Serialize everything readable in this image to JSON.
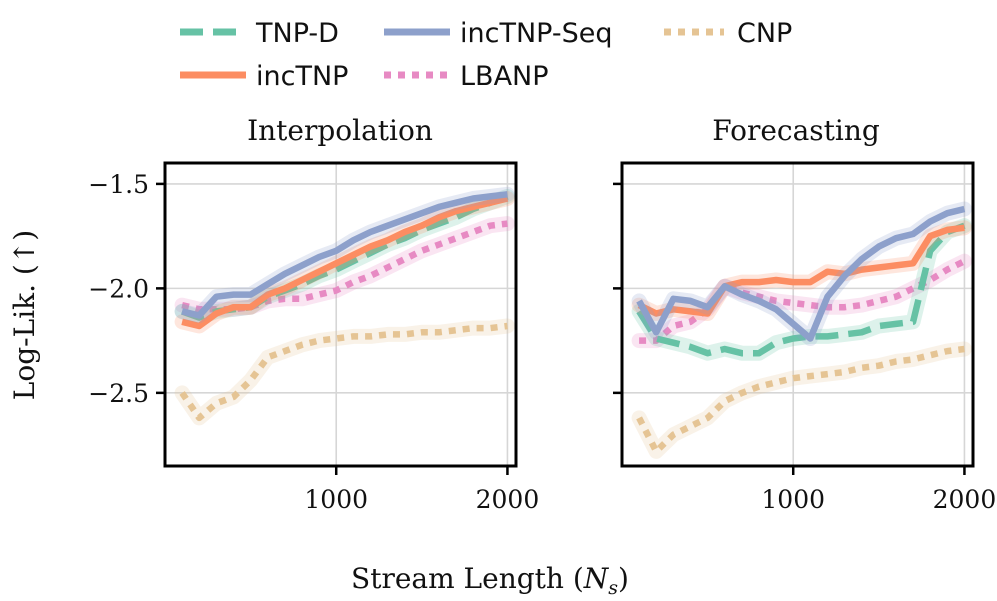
{
  "chart_data": {
    "type": "line",
    "xlabel_prefix": "Stream Length (",
    "xlabel_var": "N",
    "xlabel_sub": "s",
    "xlabel_suffix": ")",
    "ylabel": "Log-Lik. (↑)",
    "xlim": [
      0,
      2050
    ],
    "ylim": [
      -2.85,
      -1.4
    ],
    "xticks": [
      1000,
      2000
    ],
    "xtick_labels": [
      "1000",
      "2000"
    ],
    "yticks": [
      -1.5,
      -2.0,
      -2.5
    ],
    "ytick_labels": [
      "−1.5",
      "−2.0",
      "−2.5"
    ],
    "grid": true,
    "legend": {
      "placement": "top",
      "entries": [
        {
          "name": "TNP-D",
          "color": "#66c2a5",
          "style": "dashed"
        },
        {
          "name": "incTNP-Seq",
          "color": "#8da0cb",
          "style": "solid"
        },
        {
          "name": "CNP",
          "color": "#e5c494",
          "style": "dotted"
        },
        {
          "name": "incTNP",
          "color": "#fc8d62",
          "style": "solid"
        },
        {
          "name": "LBANP",
          "color": "#e78ac3",
          "style": "dotted"
        }
      ]
    },
    "panels": [
      {
        "title": "Interpolation",
        "show_yticklabels": true,
        "x": [
          100,
          200,
          300,
          400,
          500,
          600,
          700,
          800,
          900,
          1000,
          1100,
          1200,
          1300,
          1400,
          1500,
          1600,
          1700,
          1800,
          1900,
          2000
        ],
        "series": [
          {
            "name": "CNP",
            "values": [
              -2.5,
              -2.62,
              -2.55,
              -2.52,
              -2.44,
              -2.33,
              -2.3,
              -2.27,
              -2.25,
              -2.24,
              -2.23,
              -2.23,
              -2.22,
              -2.22,
              -2.21,
              -2.21,
              -2.2,
              -2.19,
              -2.19,
              -2.18
            ]
          },
          {
            "name": "LBANP",
            "values": [
              -2.08,
              -2.1,
              -2.1,
              -2.1,
              -2.09,
              -2.06,
              -2.05,
              -2.05,
              -2.03,
              -2.01,
              -1.97,
              -1.94,
              -1.9,
              -1.86,
              -1.82,
              -1.79,
              -1.76,
              -1.73,
              -1.7,
              -1.69
            ]
          },
          {
            "name": "TNP-D",
            "values": [
              -2.11,
              -2.14,
              -2.11,
              -2.1,
              -2.09,
              -2.04,
              -2.01,
              -1.98,
              -1.94,
              -1.91,
              -1.87,
              -1.83,
              -1.79,
              -1.76,
              -1.72,
              -1.69,
              -1.66,
              -1.62,
              -1.59,
              -1.56
            ]
          },
          {
            "name": "incTNP",
            "values": [
              -2.16,
              -2.18,
              -2.12,
              -2.09,
              -2.09,
              -2.03,
              -2.0,
              -1.96,
              -1.92,
              -1.88,
              -1.84,
              -1.8,
              -1.77,
              -1.73,
              -1.7,
              -1.66,
              -1.63,
              -1.61,
              -1.59,
              -1.57
            ]
          },
          {
            "name": "incTNP-Seq",
            "values": [
              -2.11,
              -2.13,
              -2.04,
              -2.03,
              -2.03,
              -1.98,
              -1.93,
              -1.89,
              -1.85,
              -1.82,
              -1.77,
              -1.73,
              -1.7,
              -1.67,
              -1.64,
              -1.61,
              -1.59,
              -1.57,
              -1.56,
              -1.55
            ]
          }
        ]
      },
      {
        "title": "Forecasting",
        "show_yticklabels": false,
        "x": [
          100,
          200,
          300,
          400,
          500,
          600,
          700,
          800,
          900,
          1000,
          1100,
          1200,
          1300,
          1400,
          1500,
          1600,
          1700,
          1800,
          1900,
          2000
        ],
        "series": [
          {
            "name": "CNP",
            "values": [
              -2.62,
              -2.78,
              -2.7,
              -2.66,
              -2.62,
              -2.54,
              -2.5,
              -2.47,
              -2.45,
              -2.43,
              -2.42,
              -2.41,
              -2.4,
              -2.38,
              -2.37,
              -2.35,
              -2.34,
              -2.32,
              -2.3,
              -2.29
            ]
          },
          {
            "name": "LBANP",
            "values": [
              -2.25,
              -2.25,
              -2.18,
              -2.16,
              -2.1,
              -1.99,
              -2.02,
              -2.04,
              -2.06,
              -2.07,
              -2.08,
              -2.09,
              -2.09,
              -2.08,
              -2.06,
              -2.04,
              -2.0,
              -1.96,
              -1.91,
              -1.87
            ]
          },
          {
            "name": "TNP-D",
            "values": [
              -2.11,
              -2.24,
              -2.26,
              -2.28,
              -2.31,
              -2.29,
              -2.31,
              -2.31,
              -2.26,
              -2.24,
              -2.23,
              -2.23,
              -2.22,
              -2.21,
              -2.18,
              -2.17,
              -2.16,
              -1.82,
              -1.73,
              -1.7
            ]
          },
          {
            "name": "incTNP",
            "values": [
              -2.08,
              -2.12,
              -2.1,
              -2.11,
              -2.12,
              -1.99,
              -1.97,
              -1.97,
              -1.96,
              -1.97,
              -1.97,
              -1.92,
              -1.93,
              -1.91,
              -1.9,
              -1.89,
              -1.88,
              -1.75,
              -1.72,
              -1.71
            ]
          },
          {
            "name": "incTNP-Seq",
            "values": [
              -2.06,
              -2.21,
              -2.05,
              -2.06,
              -2.09,
              -1.99,
              -2.03,
              -2.06,
              -2.1,
              -2.17,
              -2.24,
              -2.04,
              -1.94,
              -1.86,
              -1.8,
              -1.76,
              -1.74,
              -1.68,
              -1.64,
              -1.62
            ]
          }
        ]
      }
    ]
  }
}
